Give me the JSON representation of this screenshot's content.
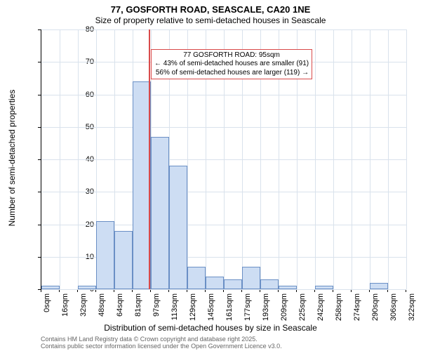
{
  "chart": {
    "type": "histogram",
    "title_main": "77, GOSFORTH ROAD, SEASCALE, CA20 1NE",
    "title_sub": "Size of property relative to semi-detached houses in Seascale",
    "title_fontsize_main": 13,
    "title_fontsize_sub": 12,
    "y_label": "Number of semi-detached properties",
    "x_label": "Distribution of semi-detached houses by size in Seascale",
    "label_fontsize": 12,
    "tick_fontsize": 11,
    "background_color": "#ffffff",
    "grid_color": "#d9e2ec",
    "axis_color": "#000000",
    "bar_fill": "#cdddf3",
    "bar_border": "#6a8fc5",
    "marker_color": "#d94a4a",
    "y": {
      "min": 0,
      "max": 80,
      "ticks": [
        0,
        10,
        20,
        30,
        40,
        50,
        60,
        70,
        80
      ]
    },
    "x": {
      "ticks": [
        "0sqm",
        "16sqm",
        "32sqm",
        "48sqm",
        "64sqm",
        "81sqm",
        "97sqm",
        "113sqm",
        "129sqm",
        "145sqm",
        "161sqm",
        "177sqm",
        "193sqm",
        "209sqm",
        "225sqm",
        "242sqm",
        "258sqm",
        "274sqm",
        "290sqm",
        "306sqm",
        "322sqm"
      ]
    },
    "bars": [
      {
        "bin": 0,
        "value": 1
      },
      {
        "bin": 1,
        "value": 0
      },
      {
        "bin": 2,
        "value": 1
      },
      {
        "bin": 3,
        "value": 21
      },
      {
        "bin": 4,
        "value": 18
      },
      {
        "bin": 5,
        "value": 64
      },
      {
        "bin": 6,
        "value": 47
      },
      {
        "bin": 7,
        "value": 38
      },
      {
        "bin": 8,
        "value": 7
      },
      {
        "bin": 9,
        "value": 4
      },
      {
        "bin": 10,
        "value": 3
      },
      {
        "bin": 11,
        "value": 7
      },
      {
        "bin": 12,
        "value": 3
      },
      {
        "bin": 13,
        "value": 1
      },
      {
        "bin": 14,
        "value": 0
      },
      {
        "bin": 15,
        "value": 1
      },
      {
        "bin": 16,
        "value": 0
      },
      {
        "bin": 17,
        "value": 0
      },
      {
        "bin": 18,
        "value": 2
      },
      {
        "bin": 19,
        "value": 0
      }
    ],
    "marker_position": 5.9,
    "annotation": {
      "line1": "77 GOSFORTH ROAD: 95sqm",
      "line2": "← 43% of semi-detached houses are smaller (91)",
      "line3": "56% of semi-detached houses are larger (119) →",
      "border": "#d94a4a",
      "background": "#ffffff",
      "fontsize": 10,
      "x_bin": 6.0,
      "y_value": 74
    },
    "footer": {
      "line1": "Contains HM Land Registry data © Crown copyright and database right 2025.",
      "line2": "Contains public sector information licensed under the Open Government Licence v3.0.",
      "color": "#666666",
      "fontsize": 9
    }
  }
}
